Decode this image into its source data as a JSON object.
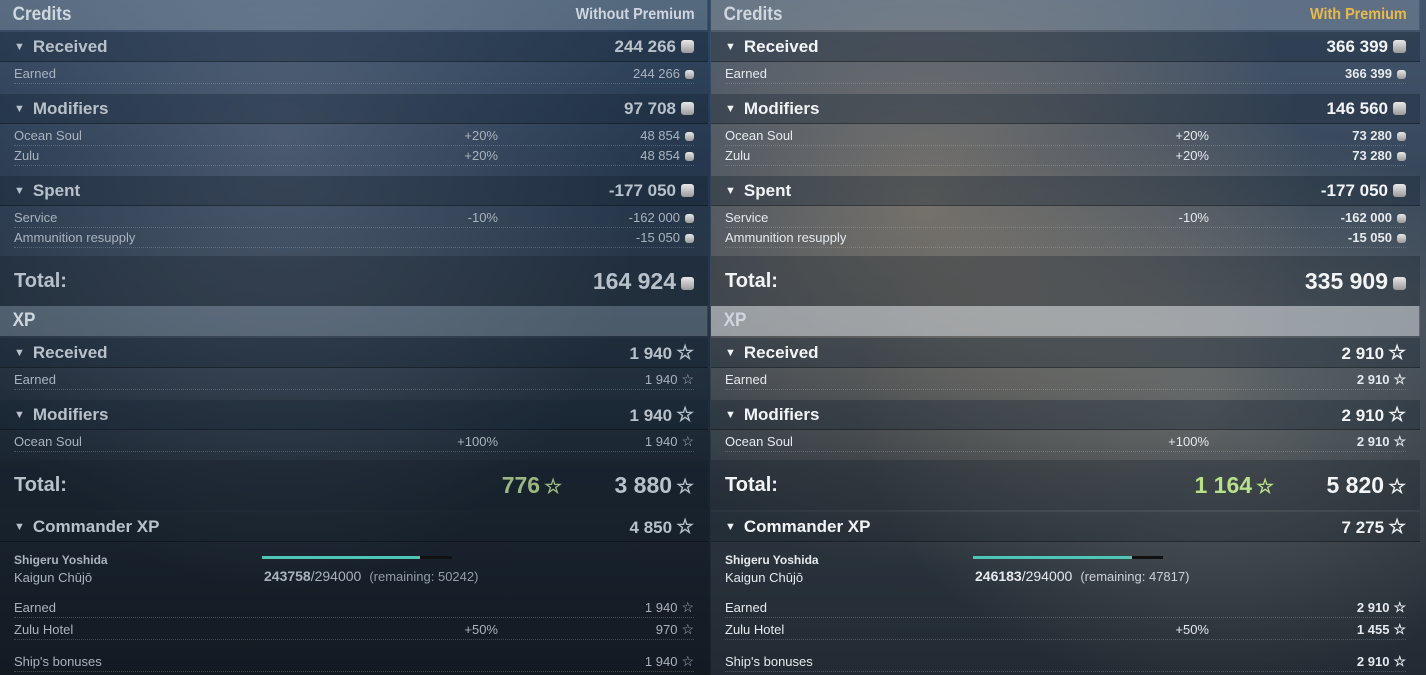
{
  "colors": {
    "premium": "#e9b94c",
    "xp_bonus": "#b8e08a",
    "progress": "#4fc6b5"
  },
  "icons": {
    "credits": "coin-stack-icon",
    "xp": "star-icon",
    "expand": "triangle-down-icon"
  },
  "columns": [
    {
      "credits": {
        "title": "Credits",
        "mode": "Without Premium",
        "received": {
          "label": "Received",
          "value": "244 266",
          "items": [
            {
              "label": "Earned",
              "value": "244 266"
            }
          ]
        },
        "modifiers": {
          "label": "Modifiers",
          "value": "97 708",
          "items": [
            {
              "label": "Ocean Soul",
              "pct": "+20%",
              "value": "48 854"
            },
            {
              "label": "Zulu",
              "pct": "+20%",
              "value": "48 854"
            }
          ]
        },
        "spent": {
          "label": "Spent",
          "value": "-177 050",
          "items": [
            {
              "label": "Service",
              "pct": "-10%",
              "value": "-162 000"
            },
            {
              "label": "Ammunition resupply",
              "value": "-15 050"
            }
          ]
        },
        "total_label": "Total:",
        "total": "164 924"
      },
      "xp": {
        "title": "XP",
        "received": {
          "label": "Received",
          "value": "1 940",
          "items": [
            {
              "label": "Earned",
              "value": "1 940"
            }
          ]
        },
        "modifiers": {
          "label": "Modifiers",
          "value": "1 940",
          "items": [
            {
              "label": "Ocean Soul",
              "pct": "+100%",
              "value": "1 940"
            }
          ]
        },
        "total_label": "Total:",
        "bonus": "776",
        "total": "3 880"
      },
      "commander": {
        "label": "Commander XP",
        "value": "4 850",
        "name": "Shigeru Yoshida",
        "rank": "Kaigun Chūjō",
        "current": "243758",
        "max": "/294000",
        "remaining": "(remaining: 50242)",
        "progress": 0.829,
        "items": [
          {
            "label": "Earned",
            "value": "1 940"
          },
          {
            "label": "Zulu Hotel",
            "pct": "+50%",
            "value": "970"
          },
          {
            "label": "Ship's bonuses",
            "value": "1 940"
          }
        ]
      }
    },
    {
      "credits": {
        "title": "Credits",
        "mode": "With Premium",
        "received": {
          "label": "Received",
          "value": "366 399",
          "items": [
            {
              "label": "Earned",
              "value": "366 399"
            }
          ]
        },
        "modifiers": {
          "label": "Modifiers",
          "value": "146 560",
          "items": [
            {
              "label": "Ocean Soul",
              "pct": "+20%",
              "value": "73 280"
            },
            {
              "label": "Zulu",
              "pct": "+20%",
              "value": "73 280"
            }
          ]
        },
        "spent": {
          "label": "Spent",
          "value": "-177 050",
          "items": [
            {
              "label": "Service",
              "pct": "-10%",
              "value": "-162 000"
            },
            {
              "label": "Ammunition resupply",
              "value": "-15 050"
            }
          ]
        },
        "total_label": "Total:",
        "total": "335 909"
      },
      "xp": {
        "title": "XP",
        "received": {
          "label": "Received",
          "value": "2 910",
          "items": [
            {
              "label": "Earned",
              "value": "2 910"
            }
          ]
        },
        "modifiers": {
          "label": "Modifiers",
          "value": "2 910",
          "items": [
            {
              "label": "Ocean Soul",
              "pct": "+100%",
              "value": "2 910"
            }
          ]
        },
        "total_label": "Total:",
        "bonus": "1 164",
        "total": "5 820"
      },
      "commander": {
        "label": "Commander XP",
        "value": "7 275",
        "name": "Shigeru Yoshida",
        "rank": "Kaigun Chūjō",
        "current": "246183",
        "max": "/294000",
        "remaining": "(remaining: 47817)",
        "progress": 0.837,
        "items": [
          {
            "label": "Earned",
            "value": "2 910"
          },
          {
            "label": "Zulu Hotel",
            "pct": "+50%",
            "value": "1 455"
          },
          {
            "label": "Ship's bonuses",
            "value": "2 910"
          }
        ]
      }
    }
  ]
}
